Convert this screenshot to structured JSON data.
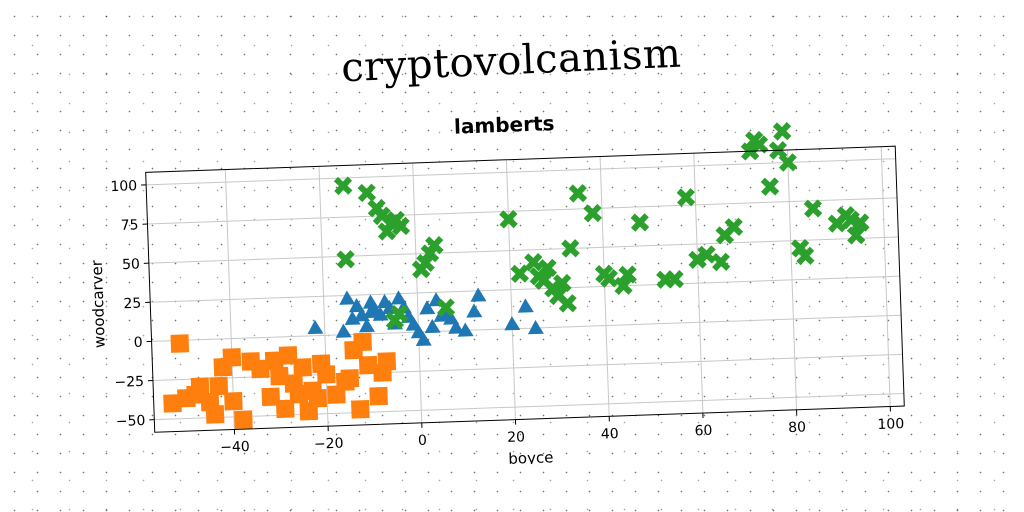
{
  "page_title": "cryptovolcanism",
  "colors": {
    "blue": "#1f77b4",
    "orange": "#ff7f0e",
    "green": "#2ca02c"
  },
  "chart_data": {
    "type": "scatter",
    "title": "lamberts",
    "xlabel": "boyce",
    "ylabel": "woodcarver",
    "xlim": [
      -57,
      103
    ],
    "ylim": [
      -58,
      108
    ],
    "xticks": [
      -40,
      -20,
      0,
      20,
      40,
      60,
      80,
      100
    ],
    "yticks": [
      -50,
      -25,
      0,
      25,
      50,
      75,
      100
    ],
    "grid": true,
    "series": [
      {
        "marker": "triangle",
        "color": "#1f77b4",
        "points": [
          [
            -15,
            23
          ],
          [
            -13,
            18
          ],
          [
            -12,
            12
          ],
          [
            -10,
            20
          ],
          [
            -9,
            14
          ],
          [
            -7,
            20
          ],
          [
            -6,
            16
          ],
          [
            -4,
            22
          ],
          [
            -3,
            16
          ],
          [
            -2,
            10
          ],
          [
            -1,
            5
          ],
          [
            0,
            0
          ],
          [
            1,
            -5
          ],
          [
            2,
            15
          ],
          [
            3,
            3
          ],
          [
            4,
            20
          ],
          [
            5,
            10
          ],
          [
            6,
            12
          ],
          [
            7,
            8
          ],
          [
            8,
            2
          ],
          [
            10,
            0
          ],
          [
            12,
            12
          ],
          [
            13,
            22
          ],
          [
            -22,
            5
          ],
          [
            -11,
            5
          ],
          [
            -10,
            14
          ],
          [
            -16,
            2
          ],
          [
            -14,
            10
          ],
          [
            20,
            3
          ],
          [
            23,
            14
          ],
          [
            25,
            0
          ],
          [
            -8,
            12
          ],
          [
            -5,
            6
          ]
        ]
      },
      {
        "marker": "square",
        "color": "#ff7f0e",
        "points": [
          [
            -51,
            -2
          ],
          [
            -53,
            -40
          ],
          [
            -50,
            -37
          ],
          [
            -48,
            -35
          ],
          [
            -47,
            -30
          ],
          [
            -45,
            -40
          ],
          [
            -44,
            -48
          ],
          [
            -43,
            -30
          ],
          [
            -42,
            -18
          ],
          [
            -40,
            -12
          ],
          [
            -40,
            -40
          ],
          [
            -38,
            -52
          ],
          [
            -36,
            -15
          ],
          [
            -34,
            -20
          ],
          [
            -32,
            -38
          ],
          [
            -31,
            -15
          ],
          [
            -30,
            -25
          ],
          [
            -29,
            -46
          ],
          [
            -28,
            -12
          ],
          [
            -27,
            -30
          ],
          [
            -26,
            -37
          ],
          [
            -25,
            -20
          ],
          [
            -24,
            -48
          ],
          [
            -23,
            -35
          ],
          [
            -22,
            -40
          ],
          [
            -21,
            -18
          ],
          [
            -20,
            -25
          ],
          [
            -18,
            -38
          ],
          [
            -16,
            -30
          ],
          [
            -15,
            -28
          ],
          [
            -13,
            -48
          ],
          [
            -12,
            -5
          ],
          [
            -11,
            -20
          ],
          [
            -9,
            -40
          ],
          [
            -8,
            -25
          ],
          [
            -7,
            -18
          ],
          [
            -14,
            -10
          ]
        ]
      },
      {
        "marker": "x",
        "color": "#2ca02c",
        "points": [
          [
            -15,
            95
          ],
          [
            -10,
            90
          ],
          [
            -8,
            80
          ],
          [
            -7,
            75
          ],
          [
            -5,
            70
          ],
          [
            -4,
            72
          ],
          [
            -6,
            65
          ],
          [
            -3,
            68
          ],
          [
            -15,
            48
          ],
          [
            1,
            40
          ],
          [
            2,
            44
          ],
          [
            3,
            50
          ],
          [
            4,
            55
          ],
          [
            -5,
            8
          ],
          [
            -4,
            12
          ],
          [
            6,
            15
          ],
          [
            20,
            70
          ],
          [
            22,
            35
          ],
          [
            25,
            42
          ],
          [
            26,
            33
          ],
          [
            27,
            30
          ],
          [
            28,
            38
          ],
          [
            29,
            25
          ],
          [
            30,
            20
          ],
          [
            31,
            28
          ],
          [
            32,
            15
          ],
          [
            33,
            50
          ],
          [
            35,
            85
          ],
          [
            38,
            72
          ],
          [
            40,
            33
          ],
          [
            41,
            30
          ],
          [
            44,
            25
          ],
          [
            45,
            32
          ],
          [
            48,
            65
          ],
          [
            53,
            28
          ],
          [
            55,
            28
          ],
          [
            58,
            80
          ],
          [
            60,
            40
          ],
          [
            62,
            43
          ],
          [
            65,
            38
          ],
          [
            66,
            55
          ],
          [
            68,
            60
          ],
          [
            72,
            108
          ],
          [
            73,
            115
          ],
          [
            74,
            112
          ],
          [
            76,
            85
          ],
          [
            78,
            108
          ],
          [
            79,
            120
          ],
          [
            80,
            100
          ],
          [
            82,
            45
          ],
          [
            83,
            40
          ],
          [
            85,
            70
          ],
          [
            90,
            60
          ],
          [
            92,
            65
          ],
          [
            93,
            62
          ],
          [
            95,
            60
          ],
          [
            94,
            52
          ]
        ]
      }
    ]
  }
}
